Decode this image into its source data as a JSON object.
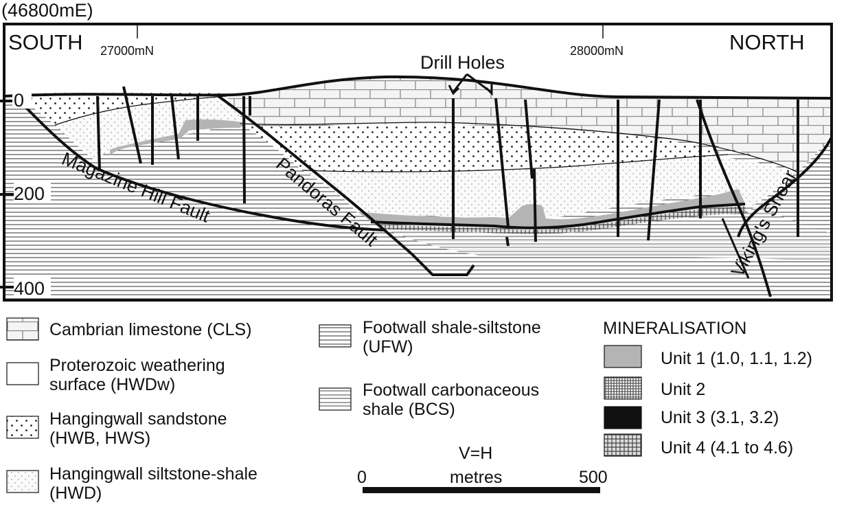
{
  "section": {
    "easting": "(46800mE)",
    "south": "SOUTH",
    "north": "NORTH",
    "northing_1": "27000mN",
    "northing_2": "28000mN",
    "drill_holes": "Drill Holes",
    "depth_0": "0",
    "depth_200": "200",
    "depth_400": "400",
    "faults": {
      "magazine_hill": "Magazine  Hill  Fault",
      "pandoras": "Pandoras  Fault",
      "vikings_shear": "Viking's Shear"
    }
  },
  "legend": {
    "lithology": [
      {
        "label_1": "Cambrian limestone (CLS)",
        "label_2": ""
      },
      {
        "label_1": "Proterozoic weathering",
        "label_2": "surface (HWDw)"
      },
      {
        "label_1": "Hangingwall sandstone",
        "label_2": "(HWB, HWS)"
      },
      {
        "label_1": "Hangingwall siltstone-shale",
        "label_2": "(HWD)"
      },
      {
        "label_1": "Footwall shale-siltstone",
        "label_2": "(UFW)"
      },
      {
        "label_1": "Footwall carbonaceous",
        "label_2": "shale (BCS)"
      }
    ],
    "mineralisation_title": "MINERALISATION",
    "units": [
      {
        "label": "Unit 1 (1.0, 1.1, 1.2)"
      },
      {
        "label": "Unit 2"
      },
      {
        "label": "Unit 3 (3.1, 3.2)"
      },
      {
        "label": "Unit 4 (4.1 to 4.6)"
      }
    ]
  },
  "scale": {
    "ratio": "V=H",
    "start": "0",
    "end": "500",
    "unit": "metres"
  },
  "colors": {
    "unit1": "#b4b4b4",
    "unit3": "#111111",
    "line": "#111111"
  }
}
